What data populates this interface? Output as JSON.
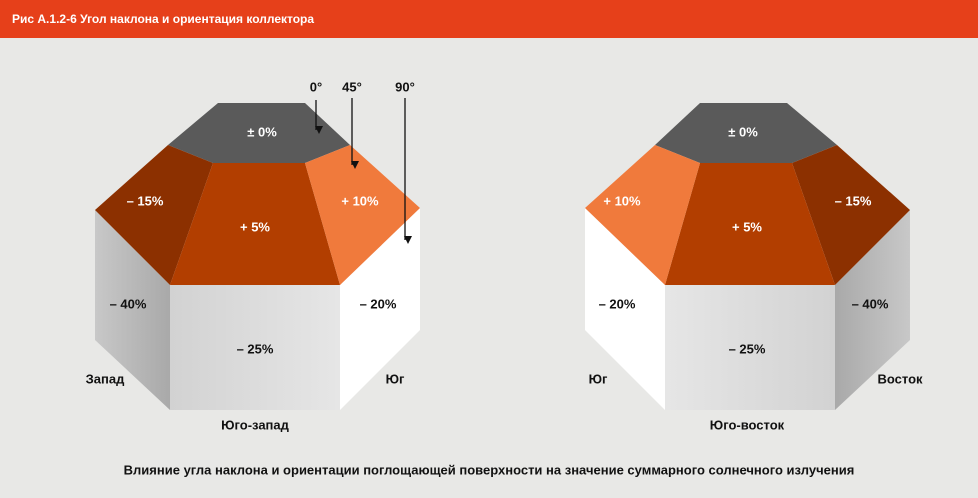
{
  "header": {
    "title": "Рис А.1.2-6   Угол наклона и ориентация коллектора"
  },
  "angles": [
    "0°",
    "45°",
    "90°"
  ],
  "left": {
    "faces": {
      "top": "± 0%",
      "upper_left": "– 15%",
      "upper_center": "+ 5%",
      "upper_right": "+ 10%",
      "side_left": "– 40%",
      "front": "– 25%",
      "side_right": "– 20%"
    },
    "labels": {
      "left": "Запад",
      "front": "Юго-запад",
      "right": "Юг"
    }
  },
  "right": {
    "faces": {
      "top": "± 0%",
      "upper_left": "+ 10%",
      "upper_center": "+ 5%",
      "upper_right": "– 15%",
      "side_left": "– 20%",
      "front": "– 25%",
      "side_right": "– 40%"
    },
    "labels": {
      "left": "Юг",
      "front": "Юго-восток",
      "right": "Восток"
    }
  },
  "caption": "Влияние угла наклона и ориентации поглощающей поверхности на значение суммарного солнечного излучения"
}
